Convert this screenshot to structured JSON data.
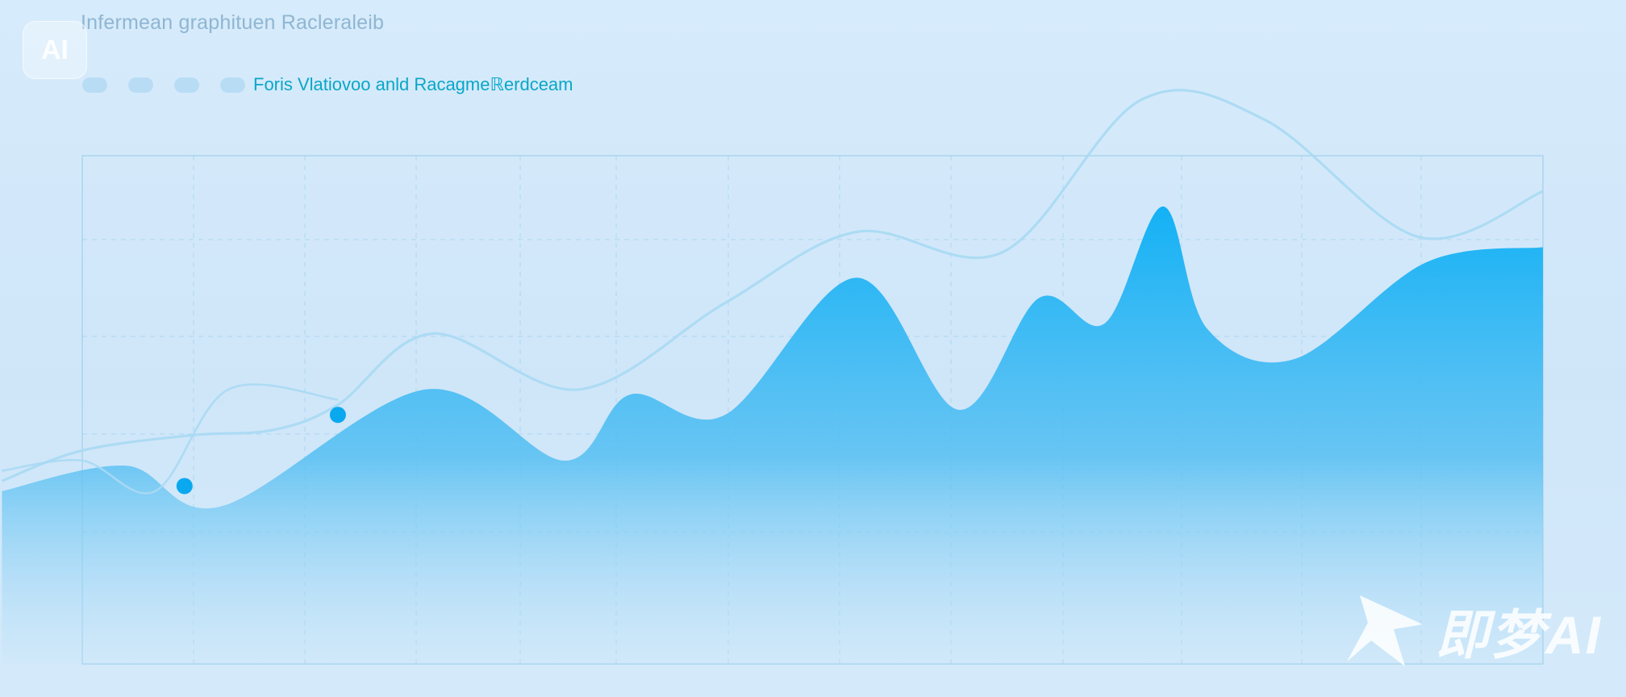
{
  "title": "Infermean graphituen Racleraleib",
  "badge": "AI",
  "legend": {
    "dots": 4,
    "label": "Foris Vlatiovoo anld Racagmeℝerdceam",
    "dot_color": "#b9dcf5",
    "label_color": "#0aa6c9"
  },
  "watermark": {
    "logo_icon": "swift-arrow-logo-icon",
    "text": "即梦AI"
  },
  "colors": {
    "area_top": "#0fb0f5",
    "area_bottom": "#c6e4f8",
    "line": "#a9d9f3",
    "marker": "#0aa8ef",
    "grid": "#9fd0ea"
  },
  "chart_data": {
    "type": "area",
    "title": "",
    "xlabel": "",
    "ylabel": "",
    "xlim": [
      0,
      20
    ],
    "ylim": [
      0,
      100
    ],
    "grid": true,
    "series": [
      {
        "kind": "area",
        "x": [
          -1.1,
          0.6,
          1.9,
          4.7,
          6.6,
          7.5,
          8.8,
          10.6,
          12.0,
          13.1,
          14.0,
          14.8,
          15.4,
          16.6,
          18.4,
          20.0
        ],
        "y": [
          34,
          39,
          31,
          54,
          40,
          53,
          49,
          76,
          50,
          72,
          67,
          90,
          66,
          60,
          79,
          82
        ]
      },
      {
        "kind": "line",
        "x": [
          -1.1,
          0,
          1.5,
          2.6,
          3.5,
          4.8,
          6.8,
          8.8,
          10.6,
          12.6,
          14.5,
          16.2,
          18.3,
          20.0
        ],
        "y": [
          36,
          42,
          45,
          46,
          51,
          65,
          54,
          71,
          85,
          81,
          111,
          107,
          84,
          93
        ]
      },
      {
        "kind": "line",
        "x": [
          -1.1,
          0,
          1.0,
          2.0,
          3.5
        ],
        "y": [
          38,
          40,
          34,
          54,
          52
        ]
      }
    ],
    "markers": [
      {
        "x": 1.4,
        "y": 35
      },
      {
        "x": 3.5,
        "y": 49
      }
    ]
  }
}
